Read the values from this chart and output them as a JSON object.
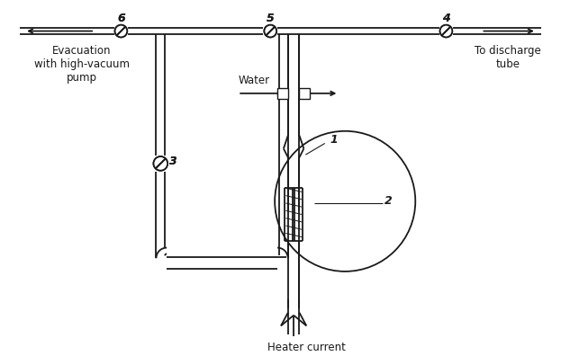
{
  "bg_color": "#ffffff",
  "line_color": "#1a1a1a",
  "text_color": "#1a1a1a",
  "figsize": [
    6.23,
    3.96
  ],
  "dpi": 100,
  "labels": {
    "evacuation": "Evacuation\nwith high-vacuum\npump",
    "water": "Water",
    "to_discharge": "To discharge\ntube",
    "heater": "Heater current",
    "valve6": "6",
    "valve5": "5",
    "valve4": "4",
    "valve3": "3",
    "label1": "1",
    "label2": "2"
  }
}
